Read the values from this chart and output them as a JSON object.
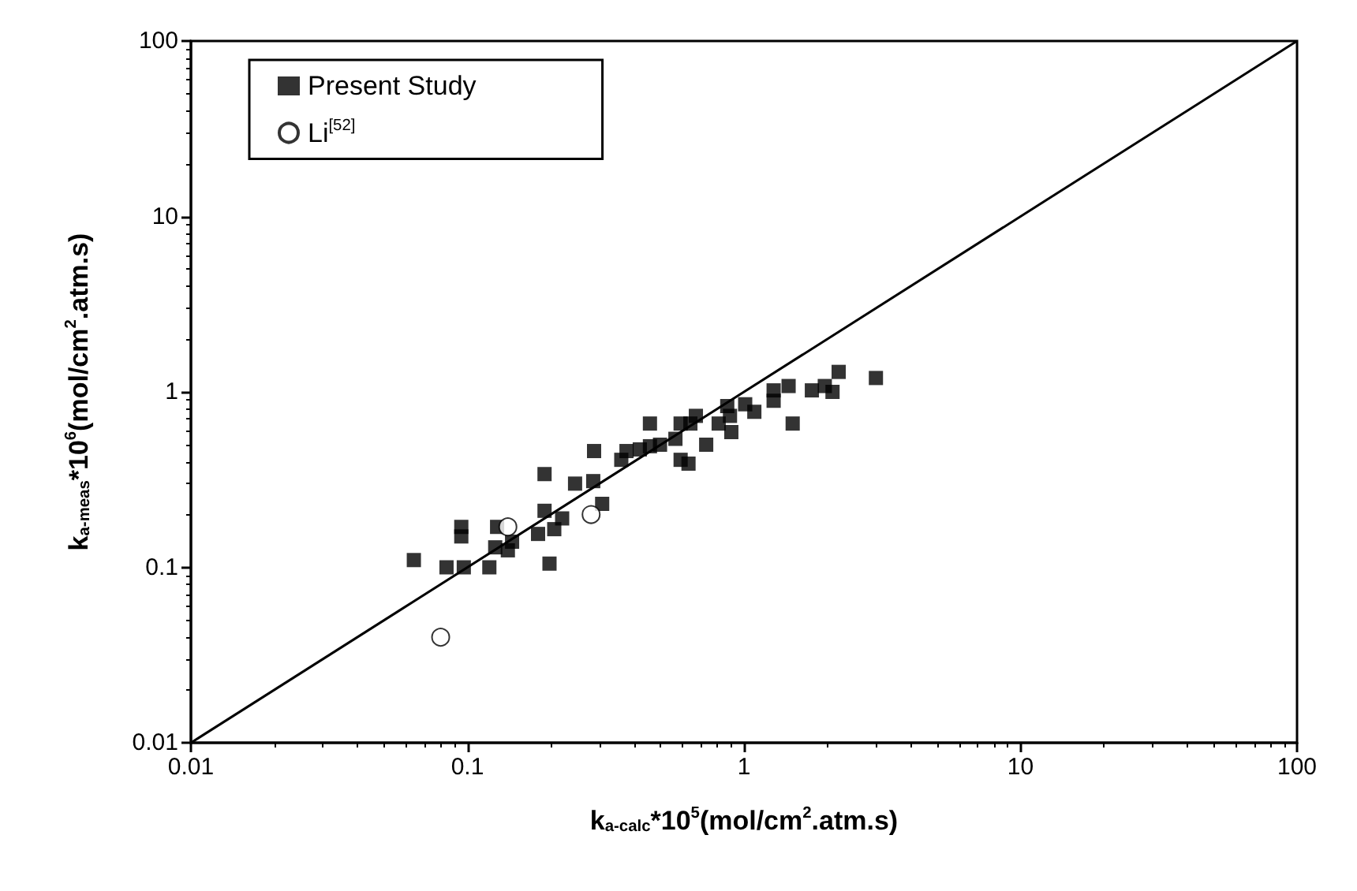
{
  "chart_data": {
    "type": "scatter",
    "xlabel": "k$_{a-calc}$*10$^{5}$(mol/cm$^{2}$.atm.s)",
    "ylabel": "k$_{a-meas}$*10$^{6}$(mol/cm$^{2}$.atm.s)",
    "log": "xy",
    "xlim": [
      0.01,
      100
    ],
    "ylim": [
      0.01,
      100
    ],
    "xticks": [
      0.01,
      0.1,
      1,
      10,
      100
    ],
    "yticks": [
      0.01,
      0.1,
      1,
      10,
      100
    ],
    "grid": false,
    "legend": "top left",
    "series": [
      {
        "name": "Present Study",
        "color": "#000000",
        "marker": "square",
        "x": [
          0.064,
          0.084,
          0.097,
          0.12,
          0.095,
          0.095,
          0.128,
          0.126,
          0.14,
          0.145,
          0.18,
          0.198,
          0.19,
          0.19,
          0.206,
          0.22,
          0.245,
          0.285,
          0.287,
          0.307,
          0.36,
          0.376,
          0.42,
          0.457,
          0.497,
          0.565,
          0.457,
          0.59,
          0.64,
          0.59,
          0.63,
          0.73,
          0.9,
          1.5,
          1.01,
          1.09,
          1.28,
          1.45,
          1.28,
          1.76,
          0.89,
          0.87,
          0.81,
          0.67,
          2.2,
          1.96,
          2.09,
          3.0
        ],
        "values": [
          0.11,
          0.1,
          0.1,
          0.1,
          0.15,
          0.17,
          0.17,
          0.13,
          0.125,
          0.14,
          0.155,
          0.105,
          0.21,
          0.34,
          0.165,
          0.19,
          0.3,
          0.31,
          0.46,
          0.23,
          0.41,
          0.46,
          0.47,
          0.49,
          0.5,
          0.54,
          0.66,
          0.66,
          0.66,
          0.41,
          0.39,
          0.5,
          0.59,
          0.66,
          0.85,
          0.77,
          0.89,
          1.08,
          1.02,
          1.02,
          0.73,
          0.83,
          0.66,
          0.73,
          1.3,
          1.08,
          1.0,
          1.2
        ]
      },
      {
        "name": "Li$^{[52]}$",
        "color": "#000000",
        "marker": "circle",
        "x": [
          0.08,
          0.14,
          0.28
        ],
        "values": [
          0.04,
          0.17,
          0.2
        ]
      },
      {
        "type": "line",
        "color": "#000000",
        "marker": "none",
        "x": [
          0.01,
          100
        ],
        "values": [
          0.01,
          100
        ]
      }
    ]
  }
}
